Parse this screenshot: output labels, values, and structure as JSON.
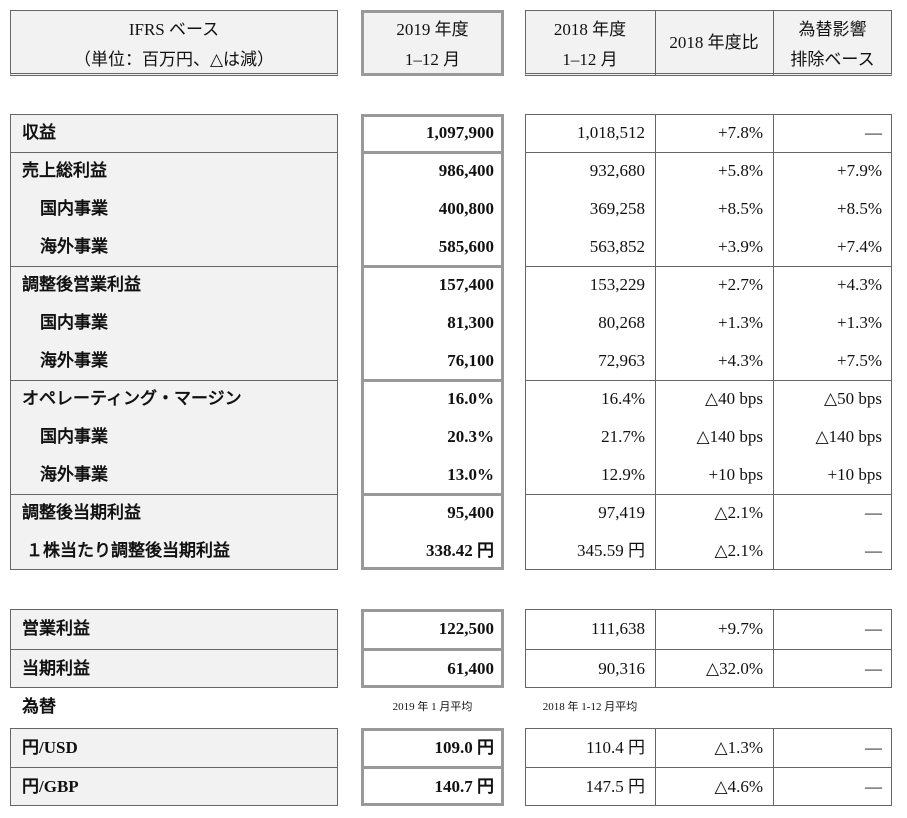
{
  "header": {
    "label": [
      "IFRS ベース",
      "（単位：百万円、△は減）"
    ],
    "current": [
      "2019 年度",
      "1–12 月"
    ],
    "prior": [
      "2018 年度",
      "1–12 月"
    ],
    "change": "2018 年度比",
    "fx_neutral": [
      "為替影響",
      "排除ベース"
    ]
  },
  "main": [
    {
      "label": "収益",
      "values": [
        "1,097,900",
        "1,018,512",
        "+7.8%",
        "—"
      ],
      "breakdown": []
    },
    {
      "label": "売上総利益",
      "values": [
        "986,400",
        "932,680",
        "+5.8%",
        "+7.9%"
      ],
      "breakdown": [
        {
          "label": "国内事業",
          "values": [
            "400,800",
            "369,258",
            "+8.5%",
            "+8.5%"
          ]
        },
        {
          "label": "海外事業",
          "values": [
            "585,600",
            "563,852",
            "+3.9%",
            "+7.4%"
          ]
        }
      ]
    },
    {
      "label": "調整後営業利益",
      "values": [
        "157,400",
        "153,229",
        "+2.7%",
        "+4.3%"
      ],
      "breakdown": [
        {
          "label": "国内事業",
          "values": [
            "81,300",
            "80,268",
            "+1.3%",
            "+1.3%"
          ]
        },
        {
          "label": "海外事業",
          "values": [
            "76,100",
            "72,963",
            "+4.3%",
            "+7.5%"
          ]
        }
      ]
    },
    {
      "label": "オペレーティング・マージン",
      "values": [
        "16.0%",
        "16.4%",
        "△40 bps",
        "△50 bps"
      ],
      "breakdown": [
        {
          "label": "国内事業",
          "values": [
            "20.3%",
            "21.7%",
            "△140 bps",
            "△140 bps"
          ]
        },
        {
          "label": "海外事業",
          "values": [
            "13.0%",
            "12.9%",
            "+10 bps",
            "+10 bps"
          ]
        }
      ]
    },
    {
      "label": "調整後当期利益",
      "values": [
        "95,400",
        "97,419",
        "△2.1%",
        "—"
      ],
      "breakdown": [
        {
          "label": "１株当たり調整後当期利益",
          "values": [
            "338.42 円",
            "345.59 円",
            "△2.1%",
            "—"
          ]
        }
      ]
    }
  ],
  "other": [
    {
      "label": "営業利益",
      "values": [
        "122,500",
        "111,638",
        "+9.7%",
        "—"
      ]
    },
    {
      "label": "当期利益",
      "values": [
        "61,400",
        "90,316",
        "△32.0%",
        "—"
      ]
    }
  ],
  "fx": {
    "title": "為替",
    "current_note": "2019 年 1 月平均",
    "prior_note": "2018 年 1-12 月平均",
    "rows": [
      {
        "label": "円/USD",
        "values": [
          "109.0 円",
          "110.4 円",
          "△1.3%",
          "—"
        ]
      },
      {
        "label": "円/GBP",
        "values": [
          "140.7 円",
          "147.5 円",
          "△4.6%",
          "—"
        ]
      }
    ]
  }
}
